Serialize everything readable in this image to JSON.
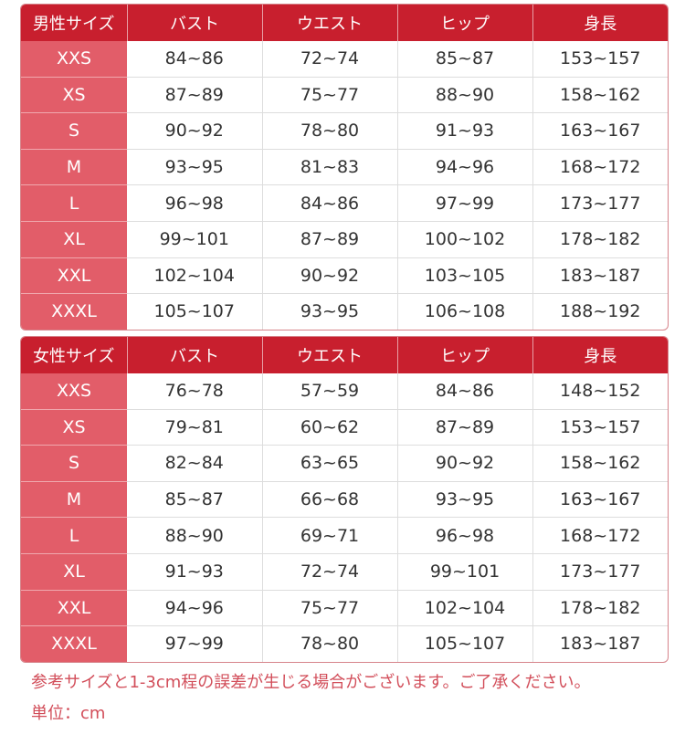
{
  "tables": [
    {
      "headers": [
        "男性サイズ",
        "バスト",
        "ウエスト",
        "ヒップ",
        "身長"
      ],
      "rows": [
        [
          "XXS",
          "84~86",
          "72~74",
          "85~87",
          "153~157"
        ],
        [
          "XS",
          "87~89",
          "75~77",
          "88~90",
          "158~162"
        ],
        [
          "S",
          "90~92",
          "78~80",
          "91~93",
          "163~167"
        ],
        [
          "M",
          "93~95",
          "81~83",
          "94~96",
          "168~172"
        ],
        [
          "L",
          "96~98",
          "84~86",
          "97~99",
          "173~177"
        ],
        [
          "XL",
          "99~101",
          "87~89",
          "100~102",
          "178~182"
        ],
        [
          "XXL",
          "102~104",
          "90~92",
          "103~105",
          "183~187"
        ],
        [
          "XXXL",
          "105~107",
          "93~95",
          "106~108",
          "188~192"
        ]
      ]
    },
    {
      "headers": [
        "女性サイズ",
        "バスト",
        "ウエスト",
        "ヒップ",
        "身長"
      ],
      "rows": [
        [
          "XXS",
          "76~78",
          "57~59",
          "84~86",
          "148~152"
        ],
        [
          "XS",
          "79~81",
          "60~62",
          "87~89",
          "153~157"
        ],
        [
          "S",
          "82~84",
          "63~65",
          "90~92",
          "158~162"
        ],
        [
          "M",
          "85~87",
          "66~68",
          "93~95",
          "163~167"
        ],
        [
          "L",
          "88~90",
          "69~71",
          "96~98",
          "168~172"
        ],
        [
          "XL",
          "91~93",
          "72~74",
          "99~101",
          "173~177"
        ],
        [
          "XXL",
          "94~96",
          "75~77",
          "102~104",
          "178~182"
        ],
        [
          "XXXL",
          "97~99",
          "78~80",
          "105~107",
          "183~187"
        ]
      ]
    }
  ],
  "notes": {
    "tolerance": "参考サイズと1-3cm程の誤差が生じる場合がございます。ご了承ください。",
    "unit": "単位：cm"
  },
  "colors": {
    "header": "#c81f2e",
    "size_column": "#e25d69",
    "note_text": "#d24e5a"
  }
}
